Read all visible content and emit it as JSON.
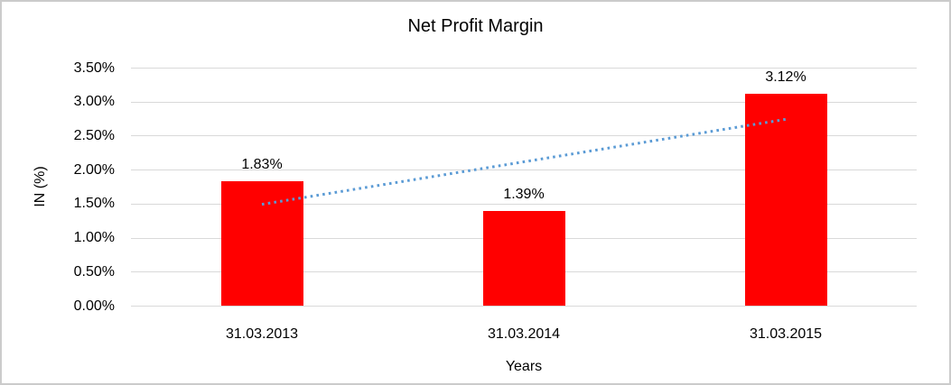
{
  "chart_data": {
    "type": "bar",
    "title": "Net Profit Margin",
    "xlabel": "Years",
    "ylabel": "IN (%)",
    "categories": [
      "31.03.2013",
      "31.03.2014",
      "31.03.2015"
    ],
    "values": [
      1.83,
      1.39,
      3.12
    ],
    "data_labels": [
      "1.83%",
      "1.39%",
      "3.12%"
    ],
    "ylim": [
      0,
      3.5
    ],
    "yticks": [
      {
        "value": 0.0,
        "label": "0.00%"
      },
      {
        "value": 0.5,
        "label": "0.50%"
      },
      {
        "value": 1.0,
        "label": "1.00%"
      },
      {
        "value": 1.5,
        "label": "1.50%"
      },
      {
        "value": 2.0,
        "label": "2.00%"
      },
      {
        "value": 2.5,
        "label": "2.50%"
      },
      {
        "value": 3.0,
        "label": "3.00%"
      },
      {
        "value": 3.5,
        "label": "3.50%"
      }
    ],
    "grid": "horizontal",
    "gridline_color": "#d9d9d9",
    "bar_color": "#ff0000",
    "legend": "none",
    "trendline": {
      "style": "dotted",
      "color": "#5b9bd5",
      "start_category_index": 0,
      "end_category_index": 2,
      "start_value": 1.49,
      "end_value": 2.74
    }
  }
}
